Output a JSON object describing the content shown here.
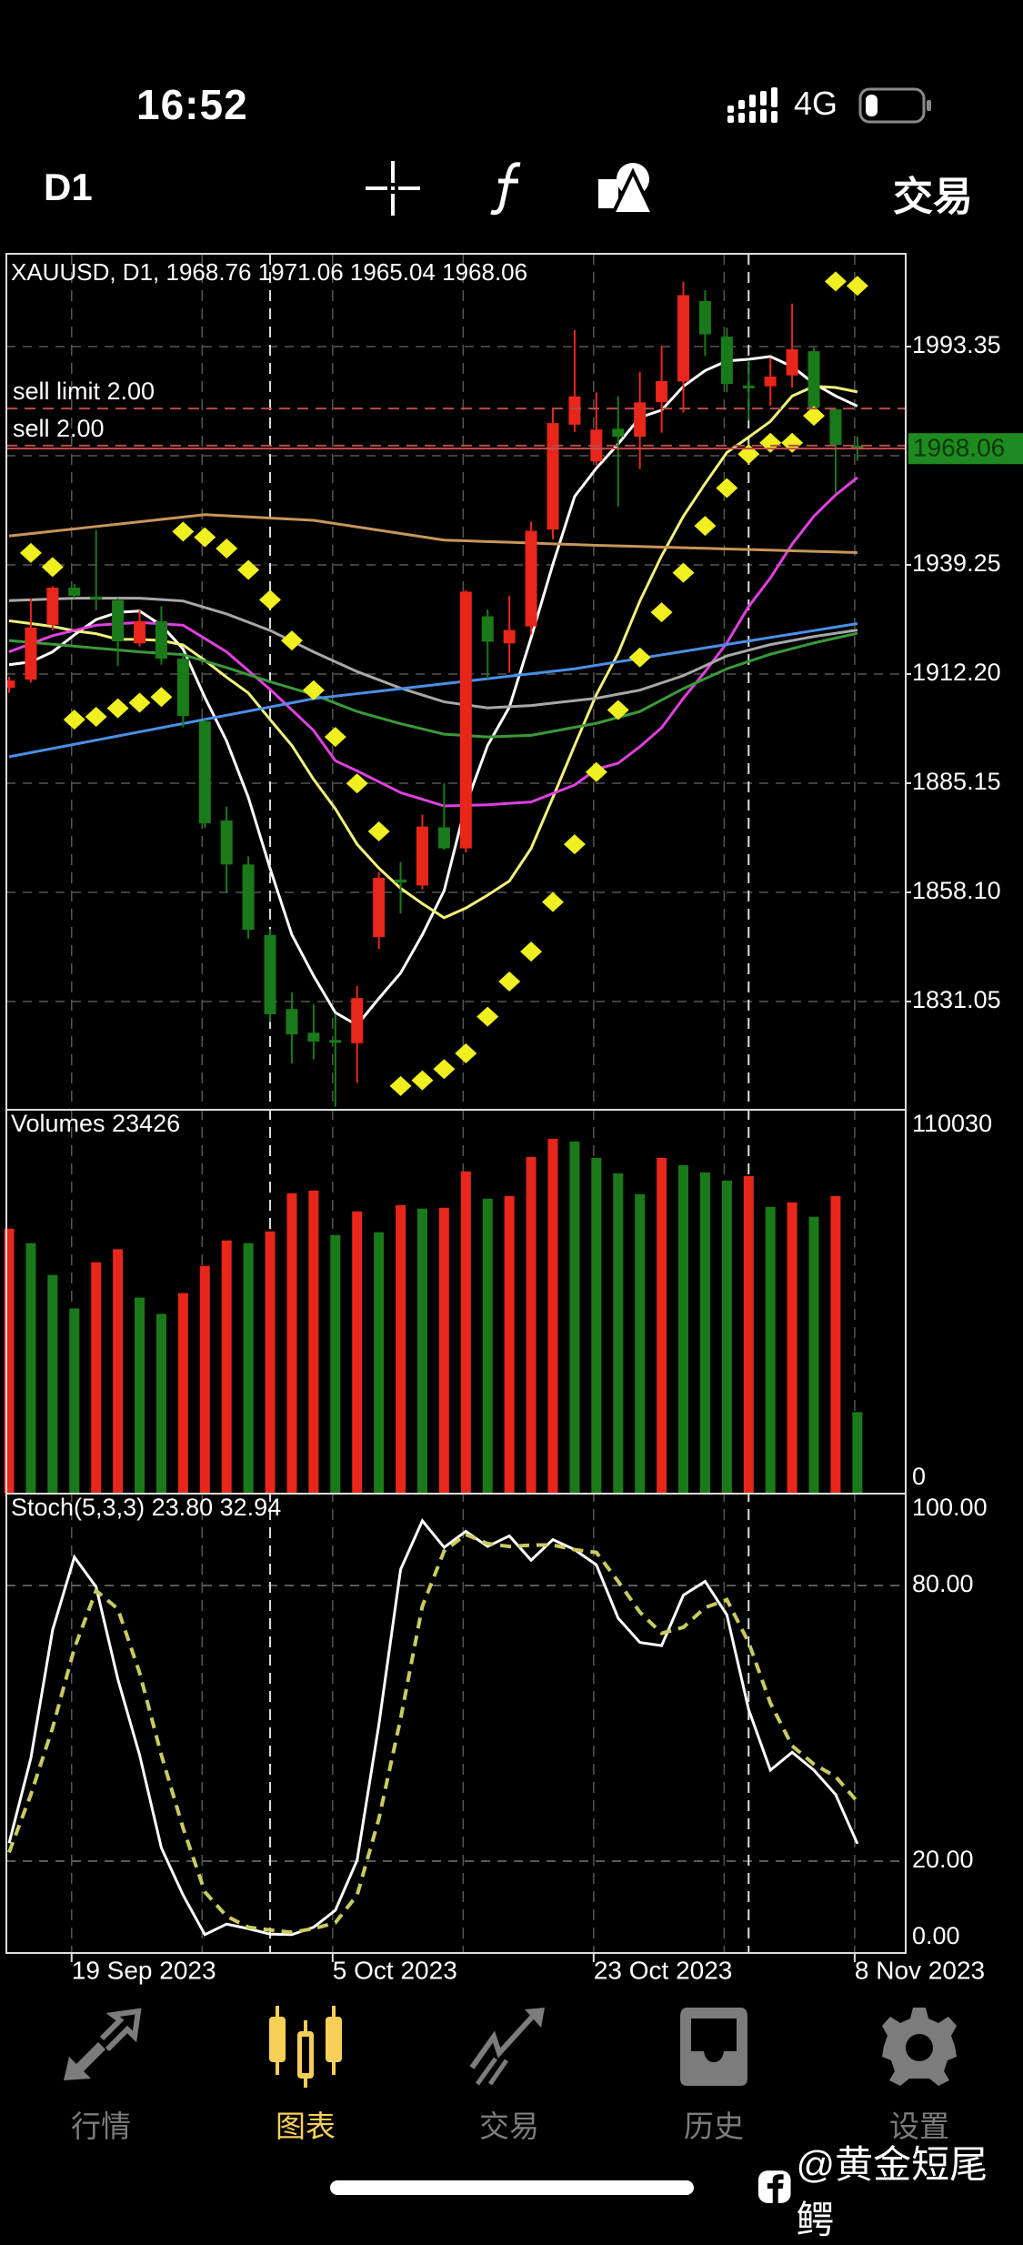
{
  "status_bar": {
    "time": "16:52",
    "network": "4G",
    "battery_level": 0.2
  },
  "toolbar": {
    "timeframe": "D1",
    "icons": [
      "crosshair-icon",
      "function-icon",
      "objects-icon"
    ],
    "trade_label": "交易"
  },
  "chart": {
    "header": "XAUUSD, D1, 1968.76 1971.06 1965.04 1968.06",
    "orders": [
      {
        "label": "sell limit 2.00",
        "price": 1978.0
      },
      {
        "label": "sell 2.00",
        "price": 1968.8
      }
    ],
    "current_price": {
      "label": "1968.06",
      "value": 1968.06,
      "color": "#1f8a1f"
    },
    "price_axis_labels": [
      "1993.35",
      "1939.25",
      "1912.20",
      "1885.15",
      "1858.10",
      "1831.05"
    ],
    "volume_legend": "Volumes 23426",
    "volume_axis_labels": [
      "110030",
      "0"
    ],
    "stoch_legend": "Stoch(5,3,3) 23.80 32.94",
    "stoch_axis_labels": [
      "100.00",
      "80.00",
      "20.00",
      "0.00"
    ],
    "date_labels": [
      "19 Sep 2023",
      "5 Oct 2023",
      "23 Oct 2023",
      "8 Nov 2023"
    ]
  },
  "chart_data": [
    {
      "type": "candlestick",
      "symbol": "XAUUSD",
      "timeframe": "D1",
      "ylim": [
        1803.8,
        2015.8
      ],
      "grid": true,
      "y_ticks": [
        1993.35,
        1966.3,
        1939.25,
        1912.2,
        1885.15,
        1858.1,
        1831.05
      ],
      "x_ticks": [
        {
          "label": "19 Sep 2023",
          "bar": 3
        },
        {
          "label": "5 Oct 2023",
          "bar": 15
        },
        {
          "label": "23 Oct 2023",
          "bar": 27
        },
        {
          "label": "8 Nov 2023",
          "bar": 39
        }
      ],
      "period_separators": [
        12,
        34
      ],
      "colors": {
        "up": "#e8261a",
        "down": "#1a7a1a",
        "sar": "#f0f020"
      },
      "ohlc": [
        [
          1908.8,
          1911.5,
          1907.5,
          1910.6
        ],
        [
          1910.8,
          1930.9,
          1910.1,
          1923.7
        ],
        [
          1924.4,
          1934.0,
          1923.0,
          1933.6
        ],
        [
          1933.6,
          1934.5,
          1931.0,
          1931.6
        ],
        [
          1931.4,
          1947.8,
          1928.0,
          1931.0
        ],
        [
          1930.5,
          1931.0,
          1914.2,
          1920.3
        ],
        [
          1919.8,
          1928.0,
          1919.0,
          1925.3
        ],
        [
          1925.3,
          1929.0,
          1914.5,
          1916.0
        ],
        [
          1916.0,
          1917.0,
          1899.0,
          1901.8
        ],
        [
          1900.5,
          1901.0,
          1874.0,
          1875.2
        ],
        [
          1875.9,
          1879.3,
          1858.0,
          1865.0
        ],
        [
          1865.0,
          1867.0,
          1846.6,
          1848.8
        ],
        [
          1847.5,
          1849.0,
          1826.0,
          1827.9
        ],
        [
          1829.2,
          1833.3,
          1815.7,
          1822.9
        ],
        [
          1823.3,
          1830.4,
          1816.7,
          1821.1
        ],
        [
          1821.5,
          1828.0,
          1805.0,
          1821.0
        ],
        [
          1820.7,
          1834.9,
          1810.9,
          1831.9
        ],
        [
          1847.0,
          1863.1,
          1844.1,
          1861.7
        ],
        [
          1861.3,
          1865.6,
          1852.9,
          1860.5
        ],
        [
          1859.8,
          1877.3,
          1858.8,
          1874.4
        ],
        [
          1874.2,
          1885.1,
          1868.6,
          1869.0
        ],
        [
          1869.0,
          1933.0,
          1868.0,
          1932.6
        ],
        [
          1926.5,
          1928.2,
          1911.0,
          1920.2
        ],
        [
          1919.8,
          1931.6,
          1912.5,
          1923.1
        ],
        [
          1924.0,
          1950.0,
          1922.0,
          1947.7
        ],
        [
          1948.0,
          1977.8,
          1945.6,
          1974.4
        ],
        [
          1974.0,
          1997.4,
          1972.2,
          1981.0
        ],
        [
          1964.9,
          1982.0,
          1964.0,
          1972.8
        ],
        [
          1973.0,
          1981.0,
          1953.7,
          1971.0
        ],
        [
          1971.0,
          1987.1,
          1963.0,
          1979.5
        ],
        [
          1979.6,
          1993.6,
          1972.0,
          1984.8
        ],
        [
          1984.7,
          2009.4,
          1977.0,
          2006.1
        ],
        [
          2004.6,
          2007.3,
          1991.0,
          1996.4
        ],
        [
          1995.8,
          1998.0,
          1982.0,
          1984.1
        ],
        [
          1983.7,
          1990.0,
          1975.0,
          1983.0
        ],
        [
          1983.5,
          1990.4,
          1978.7,
          1985.9
        ],
        [
          1986.2,
          2004.0,
          1983.2,
          1992.7
        ],
        [
          1992.2,
          1993.1,
          1977.0,
          1978.2
        ],
        [
          1977.8,
          1978.0,
          1957.0,
          1969.0
        ],
        [
          1968.76,
          1971.06,
          1965.04,
          1968.06
        ]
      ],
      "sar": [
        null,
        1942.2,
        1938.7,
        1900.9,
        1901.6,
        1903.7,
        1905.1,
        1906.5,
        1947.5,
        1946.1,
        1943.3,
        1938.0,
        1930.6,
        1920.5,
        1908.2,
        1896.6,
        1885.1,
        1873.2,
        1810.1,
        1811.5,
        1814.3,
        1818.2,
        1827.3,
        1836.0,
        1843.4,
        1855.7,
        1870.0,
        1887.9,
        1903.3,
        1916.3,
        1927.5,
        1937.3,
        1948.9,
        1958.3,
        1966.7,
        1969.5,
        1969.5,
        1976.2,
        2009.5,
        2008.4
      ],
      "moving_averages": [
        {
          "color": "#ffffff",
          "values": [
            1914.5,
            1915.2,
            1917.7,
            1921.9,
            1925.7,
            1927.5,
            1927.8,
            1924.3,
            1918.4,
            1906.4,
            1895.6,
            1881.6,
            1864.0,
            1847.6,
            1837.4,
            1828.3,
            1825.2,
            1831.8,
            1838.1,
            1847.6,
            1858.5,
            1879.8,
            1894.5,
            1904.0,
            1921.2,
            1939.4,
            1956.2,
            1963.2,
            1969.2,
            1975.8,
            1977.6,
            1983.5,
            1987.4,
            1989.8,
            1990.2,
            1990.9,
            1988.4,
            1984.2,
            1981.1,
            1978.6
          ]
        },
        {
          "color": "#f2f27a",
          "values": [
            1925.4,
            1924.7,
            1924.0,
            1922.9,
            1922.2,
            1920.8,
            1920.8,
            1920.5,
            1919.4,
            1915.6,
            1911.4,
            1907.5,
            1900.9,
            1894.5,
            1886.1,
            1878.8,
            1870.0,
            1864.1,
            1859.1,
            1855.3,
            1851.8,
            1854.2,
            1857.4,
            1860.9,
            1869.0,
            1881.6,
            1894.5,
            1907.1,
            1917.3,
            1930.3,
            1941.5,
            1951.3,
            1959.4,
            1967.1,
            1970.9,
            1974.8,
            1981.1,
            1983.5,
            1983.2,
            1982.1
          ]
        },
        {
          "color": "#e040e0",
          "values": [
            1917.7,
            null,
            1921.7,
            null,
            1924.3,
            null,
            1925.0,
            null,
            1924.3,
            null,
            1917.7,
            null,
            1908.4,
            null,
            1898.2,
            1890.7,
            1888.2,
            null,
            1882.8,
            null,
            1879.5,
            null,
            1879.8,
            null,
            1880.5,
            null,
            1884.7,
            1888.6,
            1890.1,
            1894.2,
            1898.9,
            1906.2,
            1912.8,
            1919.9,
            1928.9,
            1936.0,
            1944.4,
            1951.3,
            1956.6,
            1960.9
          ]
        },
        {
          "color": "#a8a8a8",
          "values": [
            1930.4,
            null,
            null,
            1931.0,
            null,
            null,
            1931.0,
            null,
            1930.3,
            null,
            1927.1,
            null,
            1923.0,
            null,
            1917.7,
            null,
            1912.8,
            null,
            1908.7,
            null,
            1905.3,
            null,
            1903.8,
            null,
            1904.4,
            null,
            null,
            1906.2,
            null,
            1908.2,
            null,
            1911.8,
            null,
            1916.7,
            null,
            1919.5,
            null,
            1921.5,
            null,
            1923.1
          ]
        },
        {
          "color": "#3a9a3a",
          "values": [
            1920.5,
            null,
            null,
            1919.1,
            null,
            null,
            1917.7,
            null,
            1917.0,
            null,
            1913.8,
            null,
            1910.3,
            null,
            1907.1,
            null,
            1902.9,
            null,
            1899.9,
            null,
            1897.3,
            null,
            1896.6,
            null,
            1897.0,
            null,
            null,
            1900.0,
            null,
            1902.9,
            null,
            1908.6,
            null,
            1913.5,
            null,
            1917.1,
            null,
            1919.9,
            null,
            1922.3
          ]
        },
        {
          "color": "#4a90e8",
          "values": [
            1891.7,
            null,
            null,
            null,
            null,
            null,
            null,
            null,
            null,
            null,
            null,
            null,
            null,
            null,
            1906.1,
            null,
            null,
            null,
            null,
            null,
            null,
            null,
            null,
            null,
            null,
            null,
            1913.5,
            null,
            null,
            null,
            null,
            null,
            null,
            null,
            null,
            null,
            null,
            null,
            null,
            1924.7
          ]
        },
        {
          "color": "#c8955a",
          "values": [
            1946.4,
            null,
            null,
            null,
            null,
            null,
            null,
            null,
            null,
            1951.7,
            null,
            null,
            null,
            null,
            1950.3,
            null,
            null,
            null,
            null,
            null,
            1945.4,
            null,
            null,
            null,
            null,
            null,
            null,
            1944.1,
            null,
            null,
            null,
            null,
            null,
            null,
            null,
            null,
            null,
            null,
            null,
            1942.3
          ]
        }
      ]
    },
    {
      "type": "bar",
      "name": "Volumes",
      "ylim": [
        0,
        110030
      ],
      "colors": {
        "rising": "#e8261a",
        "falling": "#1a7a1a"
      },
      "values": [
        76130,
        71960,
        62840,
        53190,
        66490,
        70220,
        56320,
        51630,
        57620,
        65440,
        72740,
        71960,
        75350,
        86300,
        87080,
        74310,
        81080,
        75090,
        82910,
        81870,
        82130,
        92560,
        84730,
        85520,
        96730,
        101940,
        101160,
        96470,
        92040,
        86040,
        96470,
        94380,
        92300,
        89950,
        91250,
        82390,
        83690,
        79520,
        85520,
        23426
      ]
    },
    {
      "type": "line",
      "name": "Stoch(5,3,3)",
      "ylim": [
        0,
        100
      ],
      "levels": [
        80,
        20
      ],
      "series": [
        {
          "color": "#ffffff",
          "style": "solid",
          "values": [
            23.9,
            42.4,
            70.3,
            86.2,
            79.7,
            59.6,
            43.1,
            22.9,
            12.6,
            4.0,
            6.3,
            5.3,
            4.1,
            4.0,
            5.6,
            9.3,
            20.2,
            49.7,
            83.5,
            94.1,
            88.3,
            91.8,
            88.5,
            90.8,
            85.5,
            90.0,
            87.8,
            84.5,
            72.9,
            67.6,
            66.9,
            77.9,
            80.9,
            73.6,
            53.0,
            39.8,
            43.7,
            39.8,
            34.5,
            23.8
          ]
        },
        {
          "color": "#c8cc60",
          "style": "dashed",
          "values": [
            21.9,
            34.5,
            49.0,
            66.3,
            78.9,
            74.9,
            61.0,
            43.1,
            27.2,
            13.3,
            8.0,
            5.6,
            5.0,
            4.5,
            5.3,
            6.6,
            12.6,
            29.2,
            51.0,
            75.5,
            87.5,
            91.1,
            89.1,
            88.5,
            88.8,
            88.8,
            87.8,
            87.2,
            80.9,
            74.2,
            69.6,
            70.9,
            75.2,
            76.9,
            67.6,
            54.4,
            45.1,
            41.1,
            38.4,
            32.94
          ]
        }
      ]
    }
  ],
  "nav": {
    "items": [
      {
        "label": "行情",
        "icon": "quotes-arrows-icon",
        "active": false
      },
      {
        "label": "图表",
        "icon": "candlestick-chart-icon",
        "active": true
      },
      {
        "label": "交易",
        "icon": "trade-trend-icon",
        "active": false
      },
      {
        "label": "历史",
        "icon": "history-inbox-icon",
        "active": false
      },
      {
        "label": "设置",
        "icon": "settings-gear-icon",
        "active": false
      }
    ],
    "active_color": "#f6cf57",
    "inactive_color": "#7c7c7c"
  },
  "watermark": {
    "text": "@黄金短尾鳄"
  }
}
